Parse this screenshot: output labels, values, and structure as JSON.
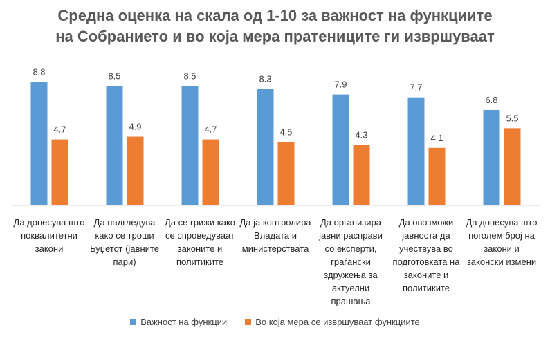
{
  "chart_data": {
    "type": "bar",
    "title": "Средна оценка на скала од 1-10 за важност на функциите на Собранието и во која мера пратениците ги извршуваат",
    "title_lines": [
      "Средна оценка на скала од 1-10 за важност на функциите",
      "на Собранието и во која мера пратениците ги извршуваат"
    ],
    "categories": [
      "Да донесува што поквалитетни закони",
      "Да надгледува како се троши Буџетот (јавните пари)",
      "Да се грижи како се спроведуваат законите и политиките",
      "Да ја контролира Владата и министерствата",
      "Да организира јавни расправи со експерти, граѓански здружења за актуелни прашања",
      "Да овозможи јавноста да учествува во подготовката на законите и политиките",
      "Да донесува што поголем број на закони и законски измени"
    ],
    "series": [
      {
        "name": "Важност на функции",
        "color": "#5b9bd5",
        "values": [
          8.8,
          8.5,
          8.5,
          8.3,
          7.9,
          7.7,
          6.8
        ]
      },
      {
        "name": "Во која мера се извршуваат функциите",
        "color": "#ed7d31",
        "values": [
          4.7,
          4.9,
          4.7,
          4.5,
          4.3,
          4.1,
          5.5
        ]
      }
    ],
    "ylim": [
      0,
      10
    ],
    "xlabel": "",
    "ylabel": "",
    "grid": false,
    "legend": "bottom"
  }
}
